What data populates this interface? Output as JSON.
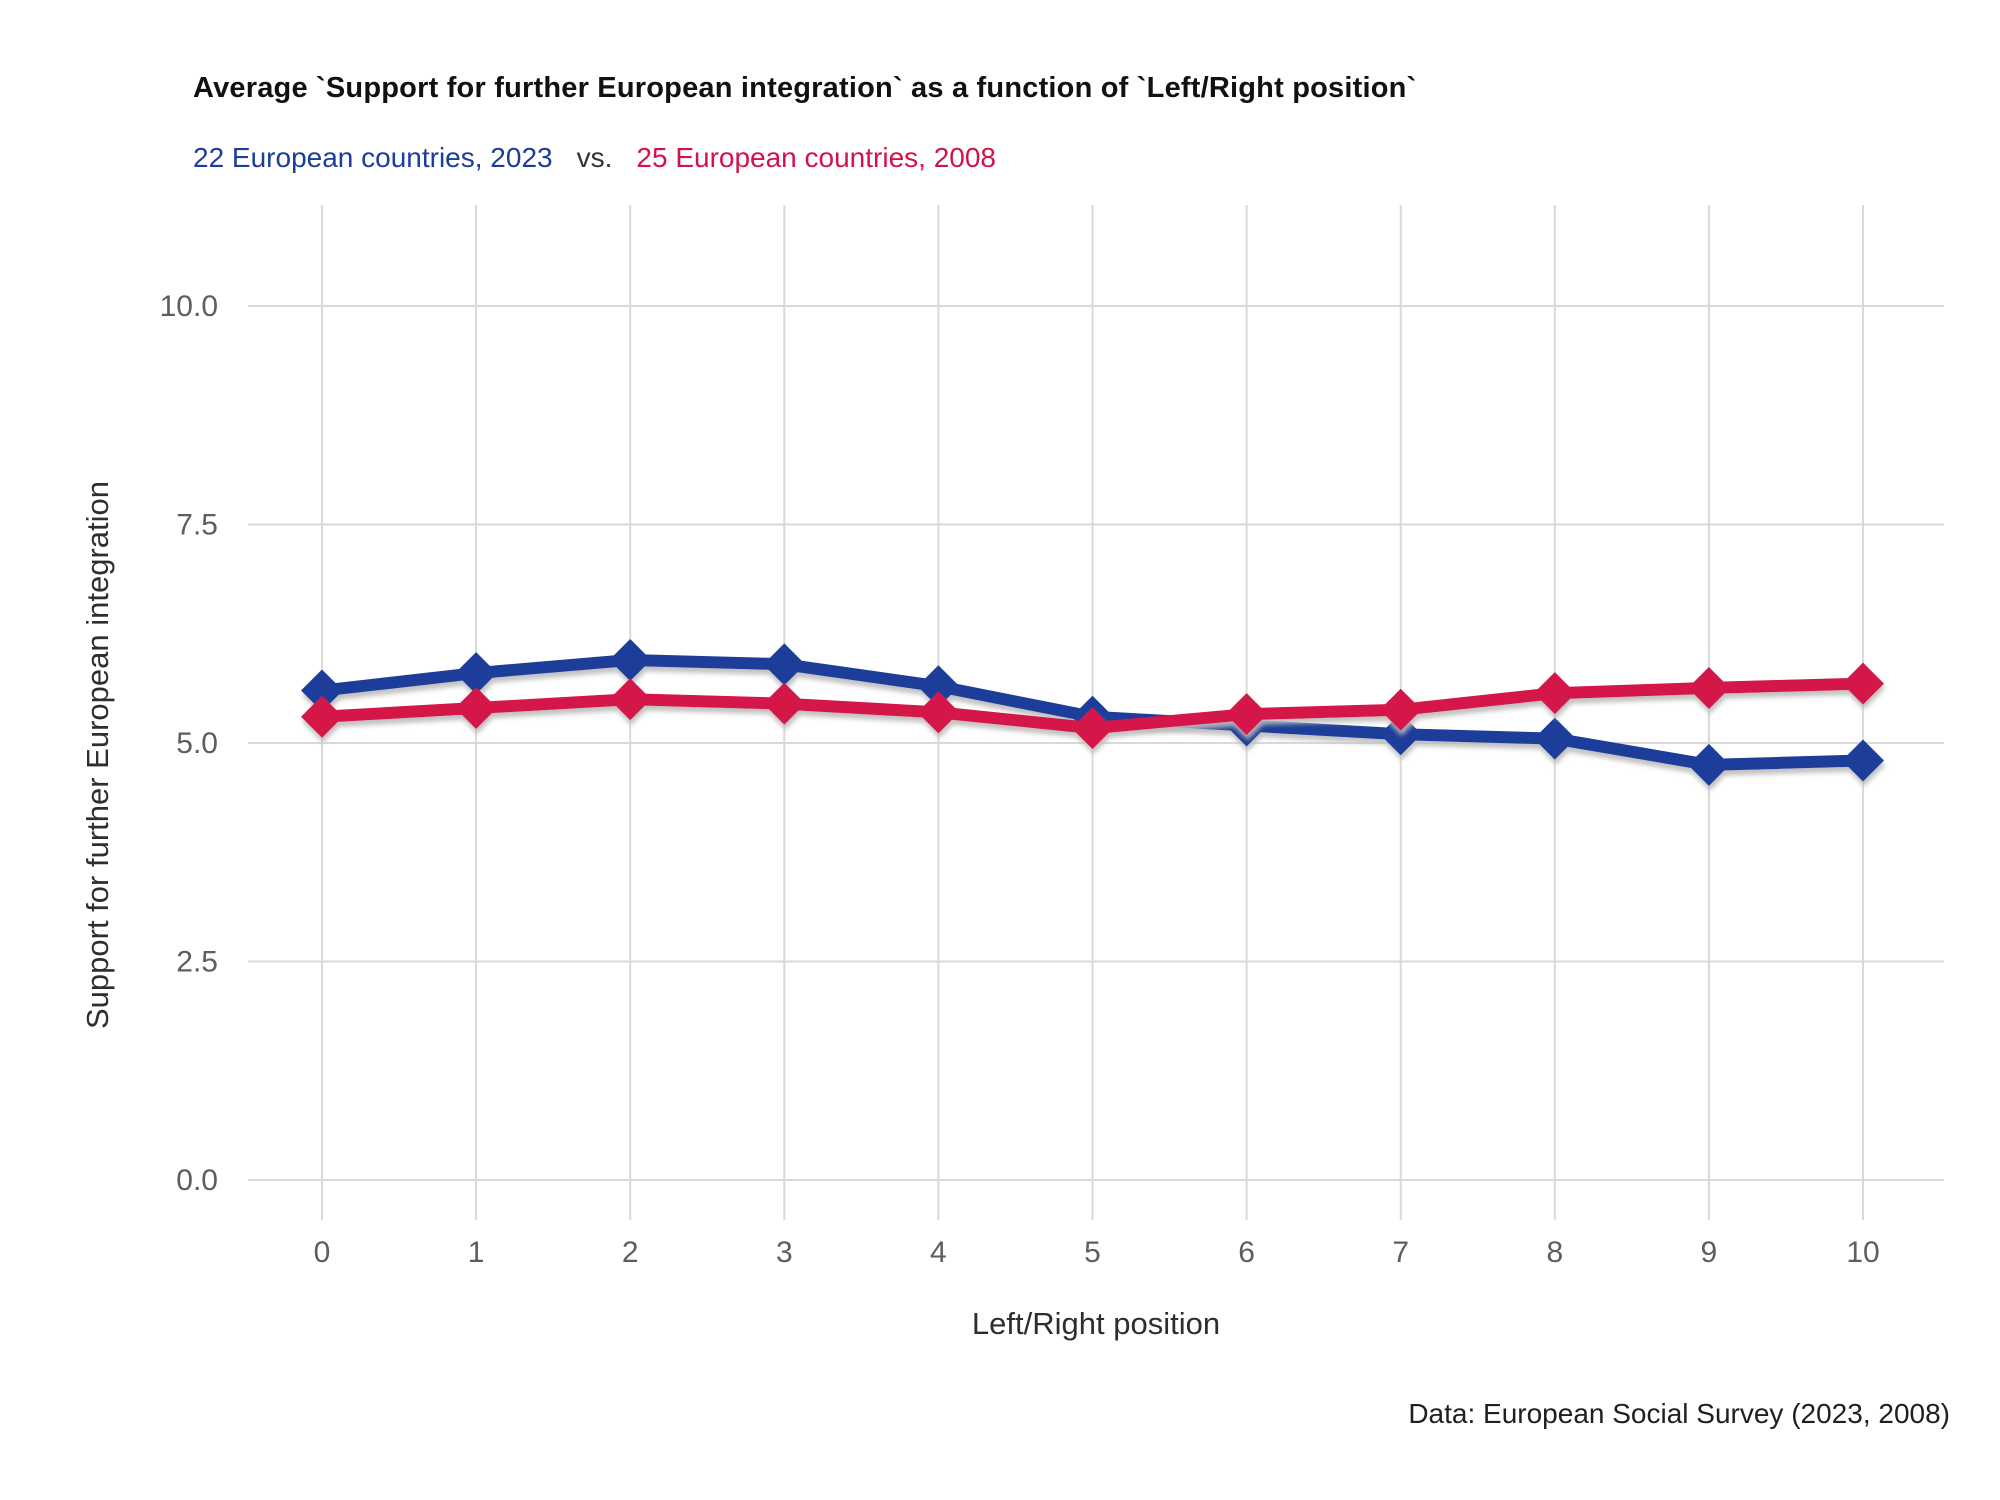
{
  "title": "Average `Support for further European integration` as a function of `Left/Right position`",
  "legend": {
    "series_a": "22 European countries, 2023",
    "separator": "vs.",
    "series_b": "25 European countries, 2008"
  },
  "footer": "Data: European Social Survey (2023, 2008)",
  "colors": {
    "blue": "#1c3d99",
    "red": "#d4124a",
    "grid": "#d9d9d9",
    "tick_label": "#5e5e5e",
    "shadow": "#bcbcbc"
  },
  "chart_data": {
    "type": "line",
    "title": "Average `Support for further European integration` as a function of `Left/Right position`",
    "xlabel": "Left/Right position",
    "ylabel": "Support for further European integration",
    "x": [
      0,
      1,
      2,
      3,
      4,
      5,
      6,
      7,
      8,
      9,
      10
    ],
    "xtick_labels": [
      "0",
      "1",
      "2",
      "3",
      "4",
      "5",
      "6",
      "7",
      "8",
      "9",
      "10"
    ],
    "yticks": [
      0.0,
      2.5,
      5.0,
      7.5,
      10.0
    ],
    "ytick_labels": [
      "0.0",
      "2.5",
      "5.0",
      "7.5",
      "10.0"
    ],
    "ylim": [
      0,
      10
    ],
    "grid": true,
    "legend_position": "top-left",
    "marker": "diamond",
    "series": [
      {
        "name": "22 European countries, 2023",
        "color": "#1c3d99",
        "values": [
          5.6,
          5.8,
          5.95,
          5.9,
          5.65,
          5.3,
          5.2,
          5.1,
          5.05,
          4.75,
          4.8
        ]
      },
      {
        "name": "25 European countries, 2008",
        "color": "#d4124a",
        "values": [
          5.3,
          5.4,
          5.5,
          5.45,
          5.35,
          5.17,
          5.33,
          5.38,
          5.57,
          5.63,
          5.68
        ]
      }
    ]
  }
}
